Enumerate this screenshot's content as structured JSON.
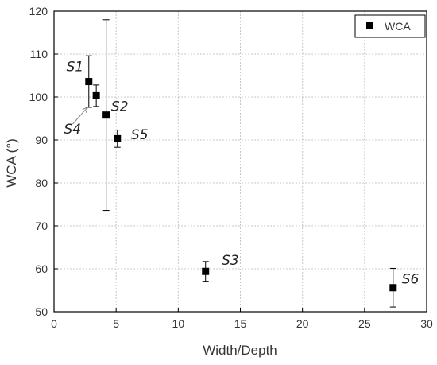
{
  "chart_data": {
    "type": "scatter",
    "title": "",
    "xlabel": "Width/Depth",
    "ylabel": "WCA (°)",
    "xlim": [
      0,
      30
    ],
    "ylim": [
      50,
      120
    ],
    "xticks": [
      0,
      5,
      10,
      15,
      20,
      25,
      30
    ],
    "yticks": [
      50,
      60,
      70,
      80,
      90,
      100,
      110,
      120
    ],
    "grid": true,
    "legend": {
      "position": "top-right",
      "entries": [
        "WCA"
      ]
    },
    "series": [
      {
        "name": "WCA",
        "marker": "square",
        "color": "#000000",
        "points": [
          {
            "x": 2.8,
            "y": 103.6,
            "err": 6.0
          },
          {
            "x": 3.4,
            "y": 100.3,
            "err": 2.5
          },
          {
            "x": 4.2,
            "y": 95.8,
            "err": 22.2
          },
          {
            "x": 5.1,
            "y": 90.3,
            "err": 2.0
          },
          {
            "x": 12.2,
            "y": 59.4,
            "err": 2.3
          },
          {
            "x": 27.3,
            "y": 55.6,
            "err": 4.5
          }
        ]
      }
    ],
    "annotations": [
      {
        "label": "S1",
        "x": 1.0,
        "y": 106.0
      },
      {
        "label": "S4",
        "x": 0.8,
        "y": 91.5
      },
      {
        "label": "S2",
        "x": 4.6,
        "y": 96.8
      },
      {
        "label": "S5",
        "x": 6.2,
        "y": 90.2
      },
      {
        "label": "S3",
        "x": 13.5,
        "y": 60.9
      },
      {
        "label": "S6",
        "x": 28.0,
        "y": 56.6
      }
    ],
    "arrow": {
      "from": {
        "x": 1.5,
        "y": 93.7
      },
      "to": {
        "x": 2.7,
        "y": 97.6
      }
    }
  }
}
